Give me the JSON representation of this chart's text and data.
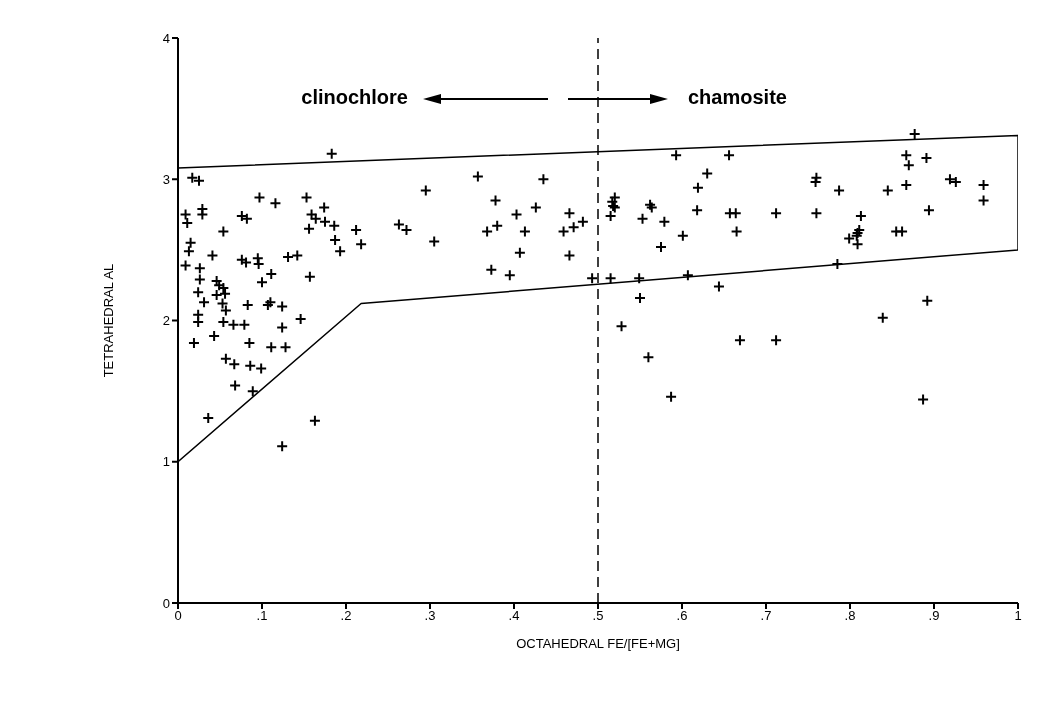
{
  "chart_data": {
    "type": "scatter",
    "xlabel": "OCTAHEDRAL FE/[FE+MG]",
    "ylabel": "TETRAHEDRAL AL",
    "xlim": [
      0,
      1
    ],
    "xticks": [
      {
        "value": 0,
        "label": "0"
      },
      {
        "value": 0.1,
        "label": ".1"
      },
      {
        "value": 0.2,
        "label": ".2"
      },
      {
        "value": 0.3,
        "label": ".3"
      },
      {
        "value": 0.4,
        "label": ".4"
      },
      {
        "value": 0.5,
        "label": ".5"
      },
      {
        "value": 0.6,
        "label": ".6"
      },
      {
        "value": 0.7,
        "label": ".7"
      },
      {
        "value": 0.8,
        "label": ".8"
      },
      {
        "value": 0.9,
        "label": ".9"
      },
      {
        "value": 1,
        "label": "1"
      }
    ],
    "ylim": [
      0,
      4
    ],
    "yticks": [
      0,
      1,
      2,
      3,
      4
    ],
    "annotations": [
      "clinochlore",
      "chamosite"
    ],
    "ref_lines": [
      {
        "axis": "x",
        "value": 0.5,
        "color": "#000000",
        "line_style": "dashed"
      }
    ],
    "series": [
      {
        "marker": "cross",
        "color": "#000000",
        "x": [
          0.183,
          0.017,
          0.025,
          0.009,
          0.011,
          0.029,
          0.029,
          0.009,
          0.013,
          0.015,
          0.041,
          0.054,
          0.026,
          0.026,
          0.024,
          0.031,
          0.024,
          0.024,
          0.019,
          0.043,
          0.036,
          0.046,
          0.049,
          0.054,
          0.056,
          0.046,
          0.053,
          0.057,
          0.054,
          0.066,
          0.079,
          0.057,
          0.067,
          0.068,
          0.089,
          0.086,
          0.099,
          0.085,
          0.083,
          0.097,
          0.076,
          0.082,
          0.076,
          0.081,
          0.095,
          0.096,
          0.1,
          0.111,
          0.107,
          0.11,
          0.124,
          0.124,
          0.111,
          0.128,
          0.146,
          0.116,
          0.131,
          0.142,
          0.124,
          0.163,
          0.153,
          0.159,
          0.164,
          0.156,
          0.157,
          0.174,
          0.175,
          0.186,
          0.187,
          0.193,
          0.212,
          0.218,
          0.295,
          0.263,
          0.272,
          0.305,
          0.357,
          0.378,
          0.368,
          0.38,
          0.373,
          0.395,
          0.403,
          0.413,
          0.407,
          0.426,
          0.435,
          0.459,
          0.466,
          0.471,
          0.482,
          0.466,
          0.493,
          0.515,
          0.515,
          0.518,
          0.52,
          0.517,
          0.52,
          0.528,
          0.553,
          0.562,
          0.564,
          0.549,
          0.55,
          0.56,
          0.579,
          0.575,
          0.587,
          0.593,
          0.601,
          0.607,
          0.619,
          0.618,
          0.63,
          0.644,
          0.656,
          0.657,
          0.664,
          0.665,
          0.669,
          0.712,
          0.712,
          0.759,
          0.76,
          0.76,
          0.787,
          0.785,
          0.799,
          0.809,
          0.811,
          0.809,
          0.813,
          0.808,
          0.839,
          0.845,
          0.855,
          0.862,
          0.867,
          0.87,
          0.867,
          0.877,
          0.891,
          0.894,
          0.892,
          0.887,
          0.919,
          0.926,
          0.959,
          0.959
        ],
        "values": [
          3.18,
          3.01,
          2.99,
          2.75,
          2.69,
          2.79,
          2.75,
          2.39,
          2.49,
          2.55,
          2.46,
          2.63,
          2.37,
          2.29,
          2.2,
          2.13,
          2.04,
          1.99,
          1.84,
          1.89,
          1.31,
          2.28,
          2.25,
          2.23,
          2.19,
          2.18,
          2.12,
          2.07,
          1.99,
          1.97,
          1.97,
          1.73,
          1.69,
          1.54,
          1.5,
          1.68,
          1.66,
          1.84,
          2.11,
          2.87,
          2.74,
          2.72,
          2.43,
          2.41,
          2.44,
          2.4,
          2.27,
          2.33,
          2.11,
          2.13,
          2.1,
          1.95,
          1.81,
          1.81,
          2.01,
          2.83,
          2.45,
          2.46,
          1.11,
          1.29,
          2.87,
          2.75,
          2.72,
          2.65,
          2.31,
          2.8,
          2.7,
          2.67,
          2.57,
          2.49,
          2.64,
          2.54,
          2.92,
          2.68,
          2.64,
          2.56,
          3.02,
          2.85,
          2.63,
          2.67,
          2.36,
          2.32,
          2.75,
          2.63,
          2.48,
          2.8,
          3.0,
          2.63,
          2.76,
          2.66,
          2.7,
          2.46,
          2.3,
          2.3,
          2.74,
          2.81,
          2.87,
          2.84,
          2.8,
          1.96,
          2.72,
          2.82,
          2.8,
          2.3,
          2.16,
          1.74,
          2.7,
          2.52,
          1.46,
          3.17,
          2.6,
          2.32,
          2.94,
          2.78,
          3.04,
          2.24,
          3.17,
          2.76,
          2.76,
          2.63,
          1.86,
          2.76,
          1.86,
          2.98,
          3.01,
          2.76,
          2.92,
          2.4,
          2.58,
          2.62,
          2.64,
          2.54,
          2.74,
          2.6,
          2.02,
          2.92,
          2.63,
          2.63,
          3.17,
          3.1,
          2.96,
          3.32,
          3.15,
          2.78,
          2.14,
          1.44,
          3.0,
          2.98,
          2.96,
          2.85
        ]
      },
      {
        "type": "line",
        "color": "#000000",
        "x": [
          0,
          0.218,
          1,
          1,
          0
        ],
        "values": [
          1.0,
          2.12,
          2.5,
          3.31,
          3.08
        ]
      }
    ]
  }
}
